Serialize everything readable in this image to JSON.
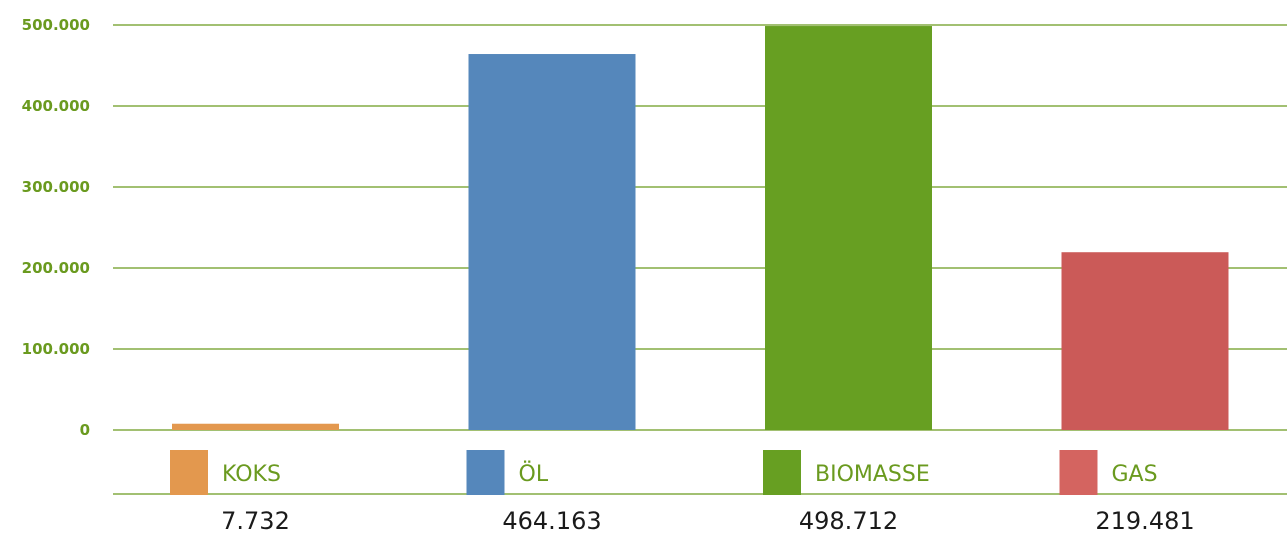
{
  "chart_data": {
    "type": "bar",
    "categories": [
      "KOKS",
      "ÖL",
      "BIOMASSE",
      "GAS"
    ],
    "values": [
      7732,
      464163,
      498712,
      219481
    ],
    "value_labels": [
      "7.732",
      "464.163",
      "498.712",
      "219.481"
    ],
    "colors": [
      "#e3984e",
      "#5587bb",
      "#679f22",
      "#cb5a58"
    ],
    "legend_swatch_colors": [
      "#e3984e",
      "#5587bb",
      "#679f22",
      "#d46460"
    ],
    "ylim": [
      0,
      500000
    ],
    "yticks": [
      0,
      100000,
      200000,
      300000,
      400000,
      500000
    ],
    "ytick_labels": [
      "0",
      "100.000",
      "200.000",
      "300.000",
      "400.000",
      "500.000"
    ],
    "grid": true,
    "grid_color": "#6a9a1f",
    "axis_label_color": "#6a9a1f",
    "title": "",
    "xlabel": "",
    "ylabel": ""
  }
}
